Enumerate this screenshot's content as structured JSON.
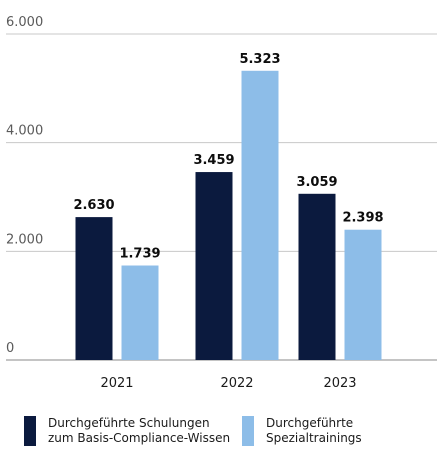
{
  "chart_data": {
    "type": "bar",
    "categories": [
      "2021",
      "2022",
      "2023"
    ],
    "series": [
      {
        "name": "Durchgeführte Schulungen\nzum Basis-Compliance-Wissen",
        "color": "#0b1a3e",
        "values": [
          2630,
          3459,
          3059
        ],
        "labels": [
          "2.630",
          "3.459",
          "3.059"
        ]
      },
      {
        "name": "Durchgeführte\nSpezialtrainings",
        "color": "#8dbde8",
        "values": [
          1739,
          5323,
          2398
        ],
        "labels": [
          "1.739",
          "5.323",
          "2.398"
        ]
      }
    ],
    "yticks": [
      0,
      2000,
      4000,
      6000
    ],
    "ytick_labels": [
      "0",
      "2.000",
      "4.000",
      "6.000"
    ],
    "ylim": [
      0,
      6000
    ],
    "grid": true,
    "legend_position": "bottom"
  }
}
